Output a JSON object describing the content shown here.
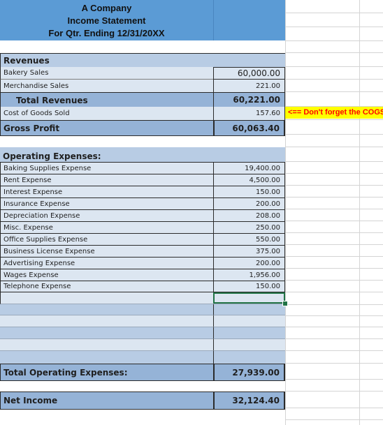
{
  "header": {
    "company": "A Company",
    "statement": "Income Statement",
    "period": "For Qtr. Ending 12/31/20XX"
  },
  "revenues": {
    "heading": "Revenues",
    "items": [
      {
        "label": "Bakery Sales",
        "value": "60,000.00"
      },
      {
        "label": "Merchandise Sales",
        "value": "221.00"
      }
    ],
    "total_label": "Total Revenues",
    "total_value": "60,221.00"
  },
  "cogs": {
    "label": "Cost of Goods Sold",
    "value": "157.60",
    "note": "<== Don't forget the COGS"
  },
  "gross_profit": {
    "label": "Gross Profit",
    "value": "60,063.40"
  },
  "operating": {
    "heading": "Operating Expenses:",
    "items": [
      {
        "label": "Baking Supplies Expense",
        "value": "19,400.00"
      },
      {
        "label": "Rent Expense",
        "value": "4,500.00"
      },
      {
        "label": "Interest Expense",
        "value": "150.00"
      },
      {
        "label": "Insurance Expense",
        "value": "200.00"
      },
      {
        "label": "Depreciation Expense",
        "value": "208.00"
      },
      {
        "label": "Misc. Expense",
        "value": "250.00"
      },
      {
        "label": "Office Supplies Expense",
        "value": "550.00"
      },
      {
        "label": "Business License Expense",
        "value": "375.00"
      },
      {
        "label": "Advertising Expense",
        "value": "200.00"
      },
      {
        "label": "Wages Expense",
        "value": "1,956.00"
      },
      {
        "label": "Telephone Expense",
        "value": "150.00"
      }
    ],
    "total_label": "Total Operating Expenses:",
    "total_value": "27,939.00"
  },
  "net_income": {
    "label": "Net Income",
    "value": "32,124.40"
  },
  "colors": {
    "header": "#5b9bd5",
    "light_fill": "#dce6f1",
    "medium_fill": "#b8cce4",
    "dark_fill": "#95b3d7",
    "note_text": "#ff0000",
    "note_fill": "#ffff00",
    "selection": "#217346"
  }
}
